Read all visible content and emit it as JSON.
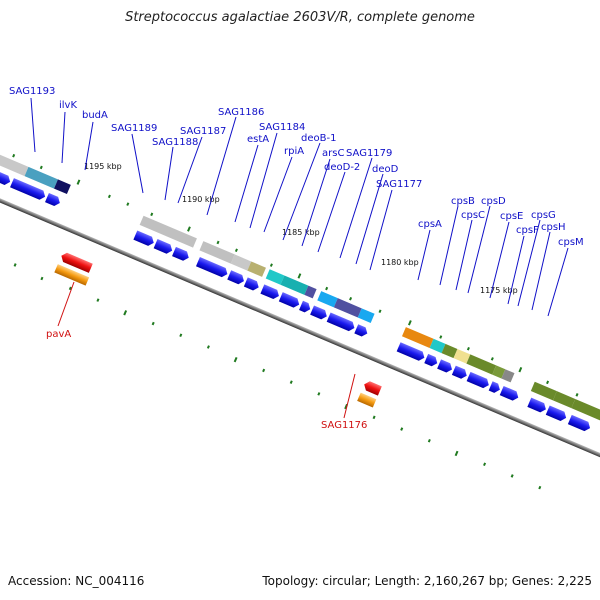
{
  "title": "Streptococcus agalactiae 2603V/R, complete genome",
  "footer": {
    "accession": "Accession: NC_004116",
    "summary": "Topology: circular; Length: 2,160,267 bp; Genes: 2,225"
  },
  "scale_labels": [
    "1195 kbp",
    "1190 kbp",
    "1185 kbp",
    "1180 kbp",
    "1175 kbp"
  ],
  "gene_labels": [
    "SAG1193",
    "ilvK",
    "budA",
    "SAG1189",
    "SAG1188",
    "SAG1187",
    "SAG1186",
    "estA",
    "SAG1184",
    "rpiA",
    "deoB-1",
    "arsC",
    "deoD-2",
    "SAG1179",
    "deoD",
    "SAG1177",
    "cpsA",
    "cpsB",
    "cpsC",
    "cpsD",
    "cpsE",
    "cpsF",
    "cpsG",
    "cpsH",
    "cpsM"
  ],
  "reverse_labels": [
    "pavA",
    "SAG1176"
  ],
  "colors": {
    "gene_label": "#1010c8",
    "reverse_label": "#d01010",
    "backbone": "#777777",
    "cds": "#1a1aee",
    "tick": "#207a20"
  }
}
